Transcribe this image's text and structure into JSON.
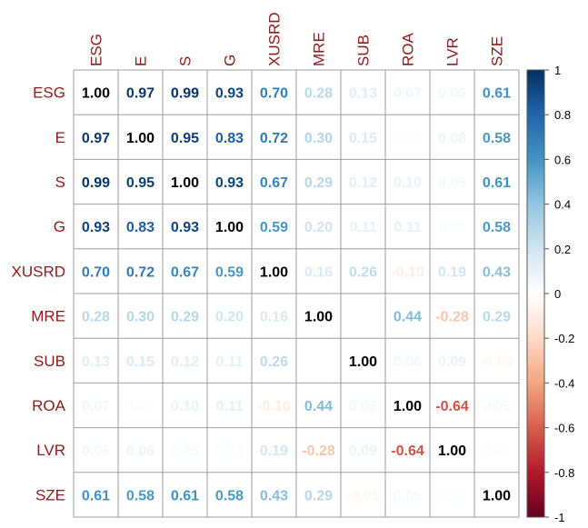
{
  "chart_data": {
    "type": "heatmap",
    "variables": [
      "ESG",
      "E",
      "S",
      "G",
      "XUSRD",
      "MRE",
      "SUB",
      "ROA",
      "LVR",
      "SZE"
    ],
    "matrix": [
      [
        1.0,
        0.97,
        0.99,
        0.93,
        0.7,
        0.28,
        0.13,
        0.07,
        0.06,
        0.61
      ],
      [
        0.97,
        1.0,
        0.95,
        0.83,
        0.72,
        0.3,
        0.15,
        0.02,
        0.08,
        0.58
      ],
      [
        0.99,
        0.95,
        1.0,
        0.93,
        0.67,
        0.29,
        0.12,
        0.1,
        0.05,
        0.61
      ],
      [
        0.93,
        0.83,
        0.93,
        1.0,
        0.59,
        0.2,
        0.11,
        0.11,
        0.03,
        0.58
      ],
      [
        0.7,
        0.72,
        0.67,
        0.59,
        1.0,
        0.16,
        0.26,
        -0.1,
        0.19,
        0.43
      ],
      [
        0.28,
        0.3,
        0.29,
        0.2,
        0.16,
        1.0,
        null,
        0.44,
        -0.28,
        0.29
      ],
      [
        0.13,
        0.15,
        0.12,
        0.11,
        0.26,
        null,
        1.0,
        0.06,
        0.09,
        -0.05
      ],
      [
        0.07,
        0.02,
        0.1,
        0.11,
        -0.1,
        0.44,
        0.06,
        1.0,
        -0.64,
        0.05
      ],
      [
        0.06,
        0.08,
        0.05,
        0.03,
        0.19,
        -0.28,
        0.09,
        -0.64,
        1.0,
        0.02
      ],
      [
        0.61,
        0.58,
        0.61,
        0.58,
        0.43,
        0.29,
        -0.05,
        0.05,
        0.02,
        1.0
      ]
    ],
    "colorbar": {
      "range": [
        -1,
        1
      ],
      "ticks": [
        "1",
        "0.8",
        "0.6",
        "0.4",
        "0.2",
        "0",
        "-0.2",
        "-0.4",
        "-0.6",
        "-0.8",
        "-1"
      ]
    },
    "colors": {
      "positive": "#053061",
      "neutral": "#ffffff",
      "negative": "#67001f",
      "label": "#8b1a1a",
      "diagonal_text": "#000000"
    },
    "grid": true
  }
}
